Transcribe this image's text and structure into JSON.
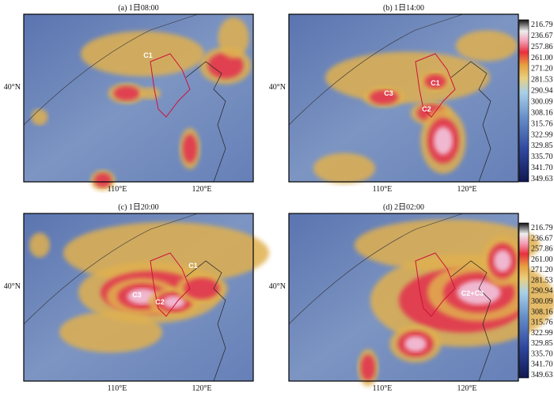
{
  "panels": [
    {
      "title": "(a) 1日08:00",
      "y_label": "40°N",
      "x_labels": [
        "110°E",
        "120°E"
      ],
      "cells": [
        "C1"
      ]
    },
    {
      "title": "(b) 1日14:00",
      "y_label": "40°N",
      "x_labels": [
        "110°E",
        "120°E"
      ],
      "cells": [
        "C3",
        "C1",
        "C2"
      ]
    },
    {
      "title": "(c) 1日20:00",
      "y_label": "40°N",
      "x_labels": [
        "110°E",
        "120°E"
      ],
      "cells": [
        "C1",
        "C3",
        "C2"
      ]
    },
    {
      "title": "(d) 2日02:00",
      "y_label": "40°N",
      "x_labels": [
        "110°E",
        "120°E"
      ],
      "cells": [
        "C2+C3"
      ]
    }
  ],
  "colorbar": {
    "ticks": [
      "216.79",
      "236.67",
      "257.86",
      "261.00",
      "271.20",
      "281.53",
      "290.94",
      "300.09",
      "308.16",
      "315.76",
      "322.99",
      "329.85",
      "335.70",
      "341.70",
      "349.63"
    ]
  }
}
